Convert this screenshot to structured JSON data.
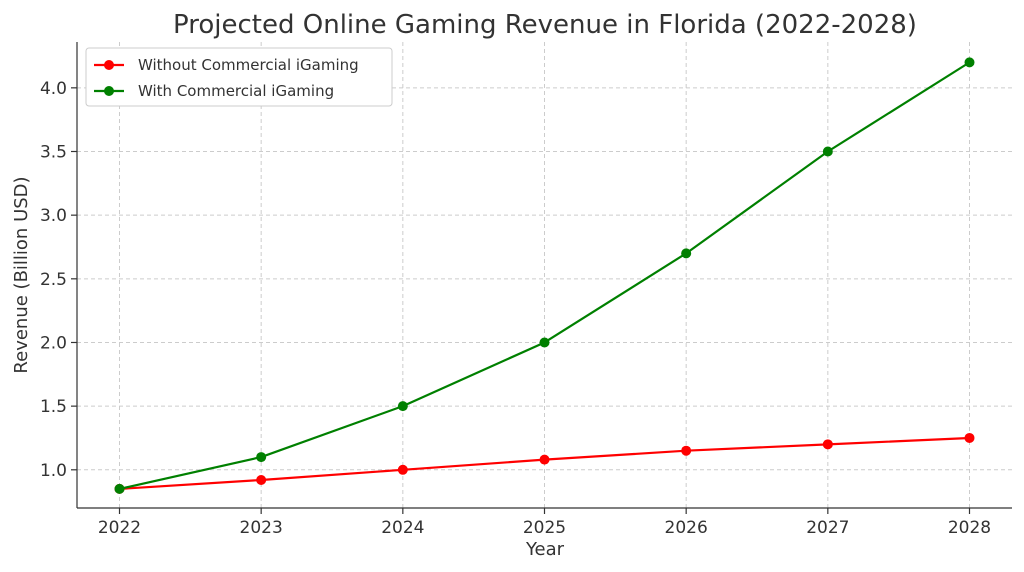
{
  "chart_data": {
    "type": "line",
    "title": "Projected Online Gaming Revenue in Florida (2022-2028)",
    "xlabel": "Year",
    "ylabel": "Revenue (Billion USD)",
    "x": [
      "2022",
      "2023",
      "2024",
      "2025",
      "2026",
      "2027",
      "2028"
    ],
    "xlim": [
      2021.7,
      2028.3
    ],
    "ylim": [
      0.7,
      4.36
    ],
    "yticks": [
      "1.0",
      "1.5",
      "2.0",
      "2.5",
      "3.0",
      "3.5",
      "4.0"
    ],
    "grid": true,
    "legend_position": "top-left",
    "series": [
      {
        "name": "Without Commercial iGaming",
        "color": "#ff0000",
        "values": [
          0.85,
          0.92,
          1.0,
          1.08,
          1.15,
          1.2,
          1.25
        ]
      },
      {
        "name": "With Commercial iGaming",
        "color": "#008000",
        "values": [
          0.85,
          1.1,
          1.5,
          2.0,
          2.7,
          3.5,
          4.2
        ]
      }
    ]
  }
}
